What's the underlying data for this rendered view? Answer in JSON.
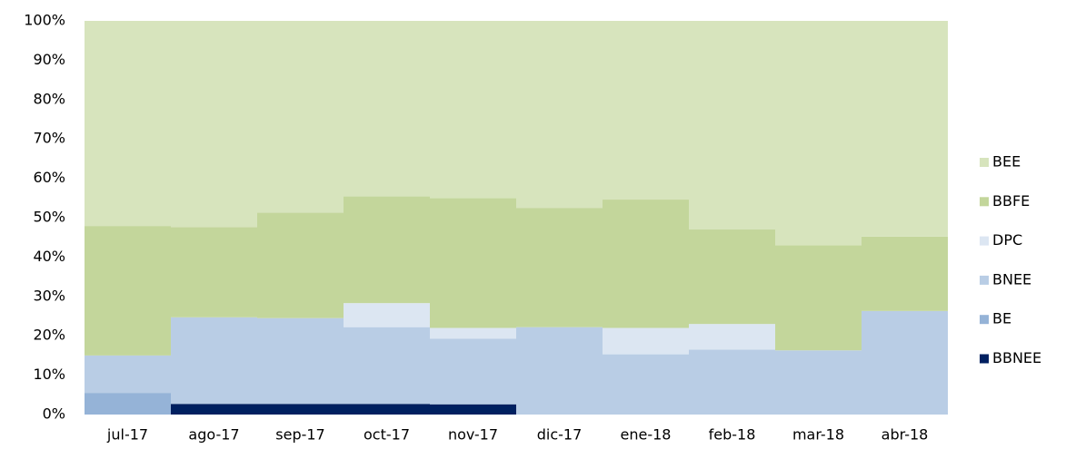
{
  "chart_data": {
    "type": "stacked_bar_100",
    "categories": [
      "jul-17",
      "ago-17",
      "sep-17",
      "oct-17",
      "nov-17",
      "dic-17",
      "ene-18",
      "feb-18",
      "mar-18",
      "abr-18"
    ],
    "series": [
      {
        "name": "BBNEE",
        "color": "#002060",
        "values": [
          0,
          2.7,
          2.7,
          2.7,
          2.6,
          0,
          0,
          0,
          0,
          0
        ]
      },
      {
        "name": "BE",
        "color": "#95b3d7",
        "values": [
          5.5,
          0,
          0,
          0,
          0,
          0,
          0,
          0,
          0,
          0
        ]
      },
      {
        "name": "BNEE",
        "color": "#b9cde5",
        "values": [
          9.5,
          22.0,
          21.8,
          19.5,
          16.7,
          22.2,
          15.3,
          16.5,
          16.3,
          26.3
        ]
      },
      {
        "name": "DPC",
        "color": "#dce6f2",
        "values": [
          0,
          0,
          0,
          6.1,
          2.7,
          0,
          6.7,
          6.5,
          0,
          0
        ]
      },
      {
        "name": "BBFE",
        "color": "#c3d69b",
        "values": [
          32.9,
          22.9,
          26.8,
          27.1,
          33.0,
          30.3,
          32.6,
          24.0,
          26.7,
          18.9
        ]
      },
      {
        "name": "BEE",
        "color": "#d7e4bd",
        "values": [
          52.1,
          52.4,
          48.7,
          44.6,
          45.0,
          47.5,
          45.4,
          53.0,
          57.0,
          54.8
        ]
      }
    ],
    "ylim": [
      0,
      100
    ],
    "yticks": [
      {
        "value": 0,
        "label": "0%"
      },
      {
        "value": 10,
        "label": "10%"
      },
      {
        "value": 20,
        "label": "20%"
      },
      {
        "value": 30,
        "label": "30%"
      },
      {
        "value": 40,
        "label": "40%"
      },
      {
        "value": 50,
        "label": "50%"
      },
      {
        "value": 60,
        "label": "60%"
      },
      {
        "value": 70,
        "label": "70%"
      },
      {
        "value": 80,
        "label": "80%"
      },
      {
        "value": 90,
        "label": "90%"
      },
      {
        "value": 100,
        "label": "100%"
      }
    ],
    "legend": "right"
  }
}
